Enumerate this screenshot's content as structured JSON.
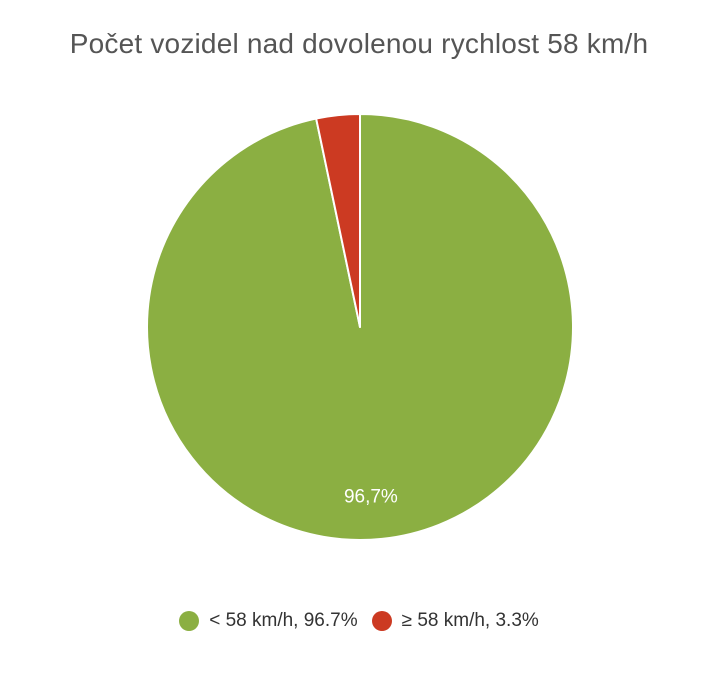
{
  "chart_data": {
    "type": "pie",
    "title": "Počet vozidel nad dovolenou rychlost 58 km/h",
    "slices": [
      {
        "label": "< 58 km/h, 96.7%",
        "value": 96.7,
        "color": "#8BAF42",
        "data_label": "96,7%"
      },
      {
        "label": "≥ 58 km/h, 3.3%",
        "value": 3.3,
        "color": "#CC3A22",
        "data_label": ""
      }
    ],
    "legend_position": "bottom"
  }
}
